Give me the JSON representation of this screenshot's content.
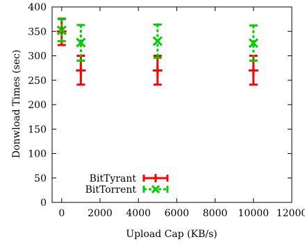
{
  "chart_data": {
    "type": "scatter",
    "title": "",
    "xlabel": "Upload Cap (KB/s)",
    "ylabel": "Donwload Times (sec)",
    "xlim": [
      -500,
      12000
    ],
    "ylim": [
      0,
      400
    ],
    "x_ticks": [
      0,
      2000,
      4000,
      6000,
      8000,
      10000,
      12000
    ],
    "y_ticks": [
      0,
      50,
      100,
      150,
      200,
      250,
      300,
      350,
      400
    ],
    "grid": false,
    "legend_position": "bottom-center",
    "series": [
      {
        "name": "BitTyrant",
        "color": "#ff0000",
        "marker": "plus",
        "points": [
          {
            "x": 0,
            "y": 350,
            "low": 322,
            "high": 376
          },
          {
            "x": 1000,
            "y": 270,
            "low": 241,
            "high": 300
          },
          {
            "x": 5000,
            "y": 270,
            "low": 241,
            "high": 300
          },
          {
            "x": 10000,
            "y": 270,
            "low": 241,
            "high": 300
          }
        ]
      },
      {
        "name": "BitTorrent",
        "color": "#00cc00",
        "marker": "x",
        "points": [
          {
            "x": 0,
            "y": 352,
            "low": 330,
            "high": 375
          },
          {
            "x": 1000,
            "y": 327,
            "low": 290,
            "high": 363
          },
          {
            "x": 5000,
            "y": 330,
            "low": 296,
            "high": 364
          },
          {
            "x": 10000,
            "y": 326,
            "low": 290,
            "high": 362
          }
        ]
      }
    ]
  }
}
